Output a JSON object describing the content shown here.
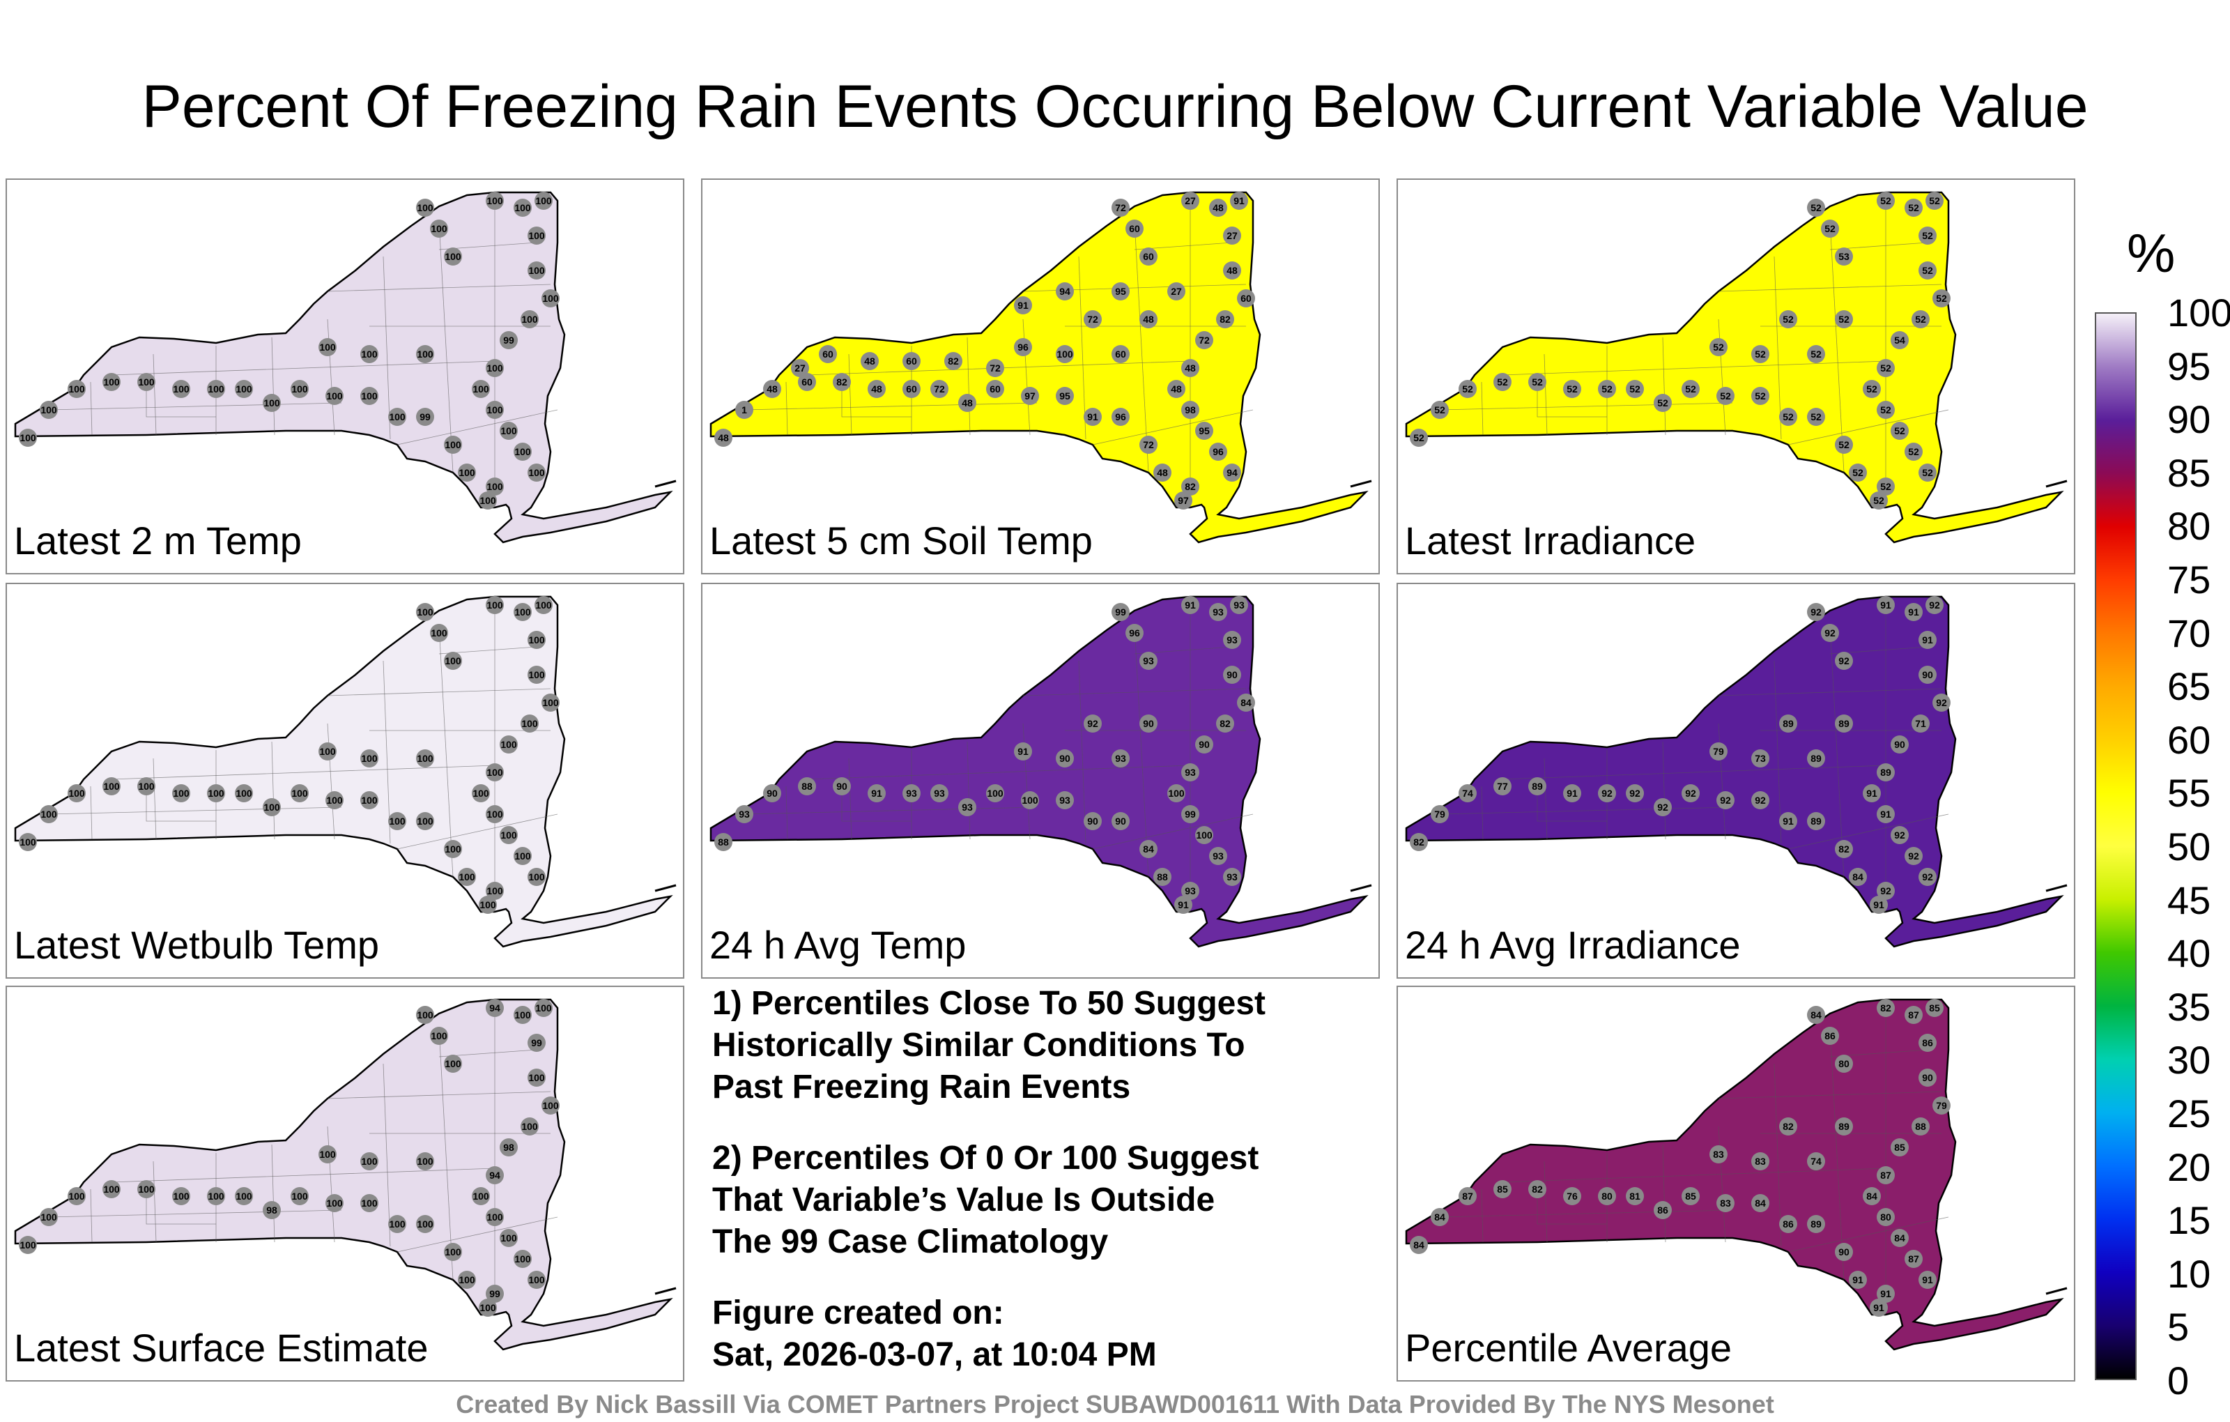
{
  "title": "Percent Of Freezing Rain Events Occurring Below Current Variable Value",
  "panels": [
    {
      "label": "Latest 2 m Temp",
      "fill": "#e6dcec",
      "values": [
        "100",
        "100",
        "100",
        "100",
        "100",
        "100",
        "100",
        "100",
        "100",
        "100",
        "99",
        "100",
        "100",
        "100",
        "100",
        "100",
        "100",
        "100",
        "100",
        "100",
        "100",
        "99",
        "100",
        "100",
        "100",
        "100",
        "100",
        "100",
        "100",
        "100",
        "100",
        "100",
        "100",
        "100",
        "100",
        "100",
        "100",
        "100"
      ]
    },
    {
      "label": "Latest 5 cm Soil Temp",
      "fill": "#ffff00",
      "values": [
        "72",
        "60",
        "60",
        "27",
        "48",
        "91",
        "27",
        "48",
        "60",
        "82",
        "72",
        "48",
        "48",
        "98",
        "95",
        "96",
        "94",
        "82",
        "97",
        "48",
        "72",
        "96",
        "91",
        "95",
        "97",
        "60",
        "48",
        "72",
        "60",
        "48",
        "82",
        "60",
        "48",
        "1",
        "48",
        "96",
        "100",
        "60",
        "72",
        "48",
        "27",
        "95",
        "94",
        "91",
        "72",
        "82",
        "60",
        "48",
        "60",
        "27"
      ]
    },
    {
      "label": "Latest Irradiance",
      "fill": "#ffff00",
      "values": [
        "52",
        "52",
        "53",
        "52",
        "52",
        "52",
        "52",
        "52",
        "52",
        "52",
        "54",
        "52",
        "52",
        "52",
        "52",
        "52",
        "52",
        "52",
        "52",
        "52",
        "52",
        "52",
        "52",
        "52",
        "52",
        "52",
        "52",
        "52",
        "52",
        "52",
        "52",
        "52",
        "52",
        "52",
        "52",
        "52",
        "52",
        "52",
        "52",
        "52"
      ]
    },
    {
      "label": "Latest Wetbulb Temp",
      "fill": "#f1edf5",
      "values": [
        "100",
        "100",
        "100",
        "100",
        "100",
        "100",
        "100",
        "100",
        "100",
        "100",
        "100",
        "100",
        "100",
        "100",
        "100",
        "100",
        "100",
        "100",
        "100",
        "100",
        "100",
        "100",
        "100",
        "100",
        "100",
        "100",
        "100",
        "100",
        "100",
        "100",
        "100",
        "100",
        "100",
        "100",
        "100",
        "100",
        "100",
        "100"
      ]
    },
    {
      "label": "24 h Avg Temp",
      "fill": "#6a2aa0",
      "values": [
        "99",
        "96",
        "93",
        "91",
        "93",
        "93",
        "93",
        "90",
        "84",
        "82",
        "90",
        "93",
        "100",
        "99",
        "100",
        "93",
        "93",
        "93",
        "91",
        "88",
        "84",
        "90",
        "90",
        "93",
        "100",
        "100",
        "93",
        "93",
        "93",
        "91",
        "90",
        "88",
        "90",
        "93",
        "88",
        "91",
        "90",
        "93",
        "92",
        "90"
      ]
    },
    {
      "label": "24 h Avg Irradiance",
      "fill": "#5a1e9a",
      "values": [
        "92",
        "92",
        "92",
        "91",
        "91",
        "92",
        "91",
        "90",
        "92",
        "71",
        "90",
        "89",
        "91",
        "91",
        "92",
        "92",
        "92",
        "92",
        "91",
        "84",
        "82",
        "89",
        "91",
        "92",
        "92",
        "92",
        "92",
        "92",
        "92",
        "91",
        "89",
        "77",
        "74",
        "79",
        "82",
        "79",
        "73",
        "89",
        "89",
        "89"
      ]
    },
    {
      "label": "Latest Surface Estimate",
      "fill": "#e6dcec",
      "values": [
        "100",
        "100",
        "100",
        "94",
        "100",
        "100",
        "99",
        "100",
        "100",
        "100",
        "98",
        "94",
        "100",
        "100",
        "100",
        "100",
        "100",
        "99",
        "100",
        "100",
        "100",
        "100",
        "100",
        "100",
        "100",
        "100",
        "98",
        "100",
        "100",
        "100",
        "100",
        "100",
        "100",
        "100",
        "100",
        "100",
        "100",
        "100"
      ]
    },
    {
      "label": "Percentile Average",
      "fill": "#8a1e6a",
      "values": [
        "84",
        "86",
        "80",
        "82",
        "87",
        "85",
        "86",
        "90",
        "79",
        "88",
        "85",
        "87",
        "84",
        "80",
        "84",
        "87",
        "91",
        "91",
        "91",
        "91",
        "90",
        "89",
        "86",
        "84",
        "83",
        "85",
        "86",
        "81",
        "80",
        "76",
        "82",
        "85",
        "87",
        "84",
        "84",
        "83",
        "83",
        "74",
        "82",
        "89"
      ]
    }
  ],
  "notes": {
    "note1": "1) Percentiles Close To 50 Suggest\nHistorically Similar Conditions To\nPast Freezing Rain Events",
    "note2": "2) Percentiles Of 0 Or 100 Suggest\nThat Variable’s Value Is Outside\nThe 99 Case Climatology",
    "created": "Figure created on:\nSat, 2026-03-07, at 10:04 PM"
  },
  "colorbar": {
    "unit": "%",
    "ticks": [
      "100",
      "95",
      "90",
      "85",
      "80",
      "75",
      "70",
      "65",
      "60",
      "55",
      "50",
      "45",
      "40",
      "35",
      "30",
      "25",
      "20",
      "15",
      "10",
      "5",
      "0"
    ],
    "colors": [
      "#f5f0f8",
      "#9f7bc4",
      "#5a1e9a",
      "#8c0a55",
      "#e00000",
      "#ff3c00",
      "#ff7800",
      "#ffaa00",
      "#ffd000",
      "#ffff00",
      "#ffff40",
      "#c8f000",
      "#40c800",
      "#00b440",
      "#00d0b0",
      "#00b0f0",
      "#0070ff",
      "#0030f0",
      "#1000c0",
      "#180070",
      "#000000"
    ]
  },
  "credit": "Created By Nick Bassill Via COMET Partners Project SUBAWD001611 With Data Provided By The NYS Mesonet"
}
